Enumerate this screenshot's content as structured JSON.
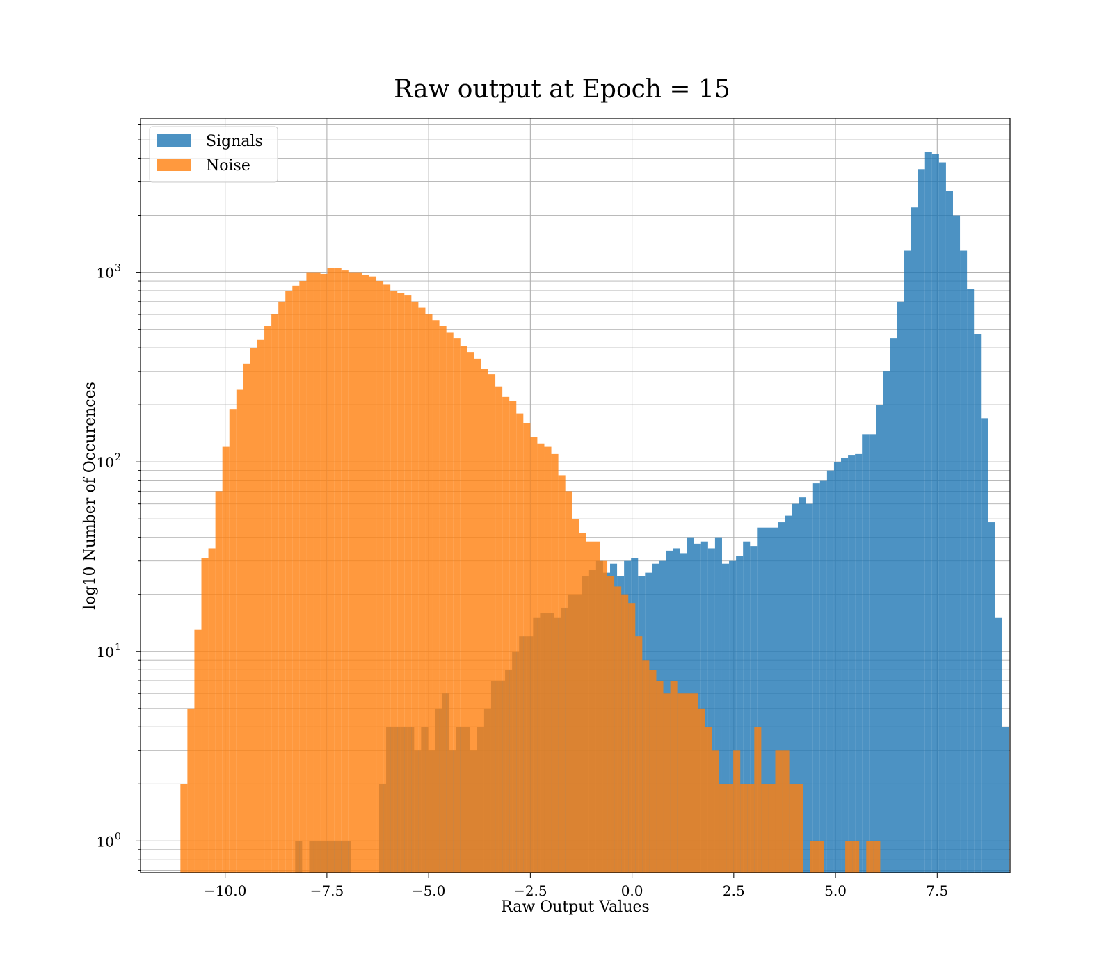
{
  "chart_data": {
    "type": "bar",
    "title": "Raw output at Epoch = 15",
    "xlabel": "Raw Output Values",
    "ylabel": "log10 Number of Occurences",
    "xlim": [
      -12.08,
      9.29
    ],
    "ylim": [
      0.68,
      6500
    ],
    "yscale": "log",
    "grid": true,
    "legend_position": "top-left",
    "bin_width": 0.172,
    "x_ticks": [
      {
        "value": -10.0,
        "label": "−10.0"
      },
      {
        "value": -7.5,
        "label": "−7.5"
      },
      {
        "value": -5.0,
        "label": "−5.0"
      },
      {
        "value": -2.5,
        "label": "−2.5"
      },
      {
        "value": 0.0,
        "label": "0.0"
      },
      {
        "value": 2.5,
        "label": "2.5"
      },
      {
        "value": 5.0,
        "label": "5.0"
      },
      {
        "value": 7.5,
        "label": "7.5"
      }
    ],
    "y_ticks": [
      {
        "value": 1,
        "base": "10",
        "exp": "0"
      },
      {
        "value": 10,
        "base": "10",
        "exp": "1"
      },
      {
        "value": 100,
        "base": "10",
        "exp": "2"
      },
      {
        "value": 1000,
        "base": "10",
        "exp": "3"
      }
    ],
    "series": [
      {
        "name": "Signals",
        "color": "#1f77b4",
        "x_start": -8.28,
        "values": [
          1,
          0,
          1,
          1,
          1,
          1,
          1,
          1,
          0,
          0,
          0,
          0,
          2,
          4,
          4,
          4,
          4,
          3,
          4,
          3,
          5,
          6,
          3,
          4,
          4,
          3,
          4,
          5,
          7,
          7,
          8,
          10,
          12,
          12,
          15,
          16,
          16,
          15,
          17,
          20,
          20,
          25,
          27,
          30,
          26,
          29,
          25,
          30,
          31,
          25,
          26,
          29,
          30,
          34,
          35,
          33,
          40,
          37,
          38,
          35,
          40,
          29,
          30,
          32,
          38,
          36,
          45,
          45,
          45,
          48,
          52,
          60,
          65,
          60,
          77,
          80,
          90,
          100,
          105,
          108,
          110,
          140,
          140,
          200,
          300,
          450,
          700,
          1300,
          2200,
          3500,
          4300,
          4200,
          3800,
          2700,
          2000,
          1300,
          820,
          470,
          170,
          48,
          15,
          4
        ]
      },
      {
        "name": "Noise",
        "color": "#ff7f0e",
        "x_start": -11.1,
        "values": [
          2,
          5,
          13,
          31,
          35,
          70,
          120,
          190,
          240,
          330,
          400,
          440,
          520,
          600,
          700,
          800,
          850,
          900,
          1000,
          1000,
          980,
          1050,
          1050,
          1030,
          1000,
          1000,
          970,
          950,
          900,
          860,
          800,
          780,
          760,
          700,
          650,
          600,
          560,
          520,
          480,
          450,
          410,
          380,
          350,
          310,
          290,
          250,
          220,
          210,
          180,
          160,
          135,
          125,
          120,
          110,
          85,
          70,
          50,
          42,
          38,
          38,
          30,
          25,
          22,
          20,
          18,
          12,
          9,
          8,
          7,
          6,
          7,
          6,
          6,
          6,
          5,
          4,
          3,
          2,
          2,
          3,
          2,
          2,
          4,
          2,
          2,
          3,
          3,
          2,
          2,
          0,
          1,
          1,
          0,
          0,
          0,
          1,
          1,
          0,
          1,
          1
        ]
      }
    ]
  }
}
